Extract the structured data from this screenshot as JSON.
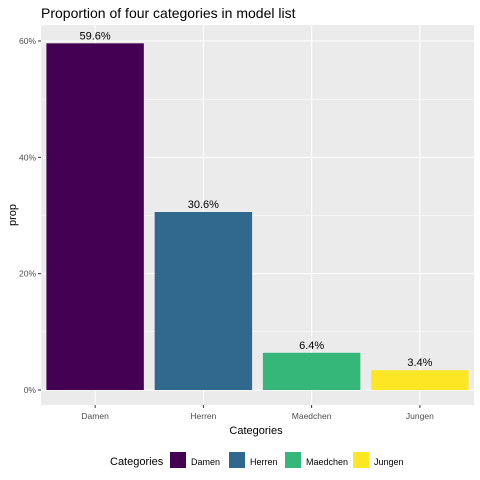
{
  "chart_data": {
    "type": "bar",
    "title": "Proportion of four categories in model list",
    "xlabel": "Categories",
    "ylabel": "prop",
    "categories": [
      "Damen",
      "Herren",
      "Maedchen",
      "Jungen"
    ],
    "values": [
      0.596,
      0.306,
      0.064,
      0.034
    ],
    "labels": [
      "59.6%",
      "30.6%",
      "6.4%",
      "3.4%"
    ],
    "colors": [
      "#440154",
      "#31688e",
      "#35b779",
      "#fde725"
    ],
    "ylim": [
      0,
      0.6
    ],
    "yticks": [
      0,
      0.2,
      0.4,
      0.6
    ],
    "ytick_labels": [
      "0%",
      "20%",
      "40%",
      "60%"
    ],
    "grid": true,
    "panel_background": "#ebebeb",
    "legend": {
      "title": "Categories",
      "position": "bottom",
      "entries": [
        "Damen",
        "Herren",
        "Maedchen",
        "Jungen"
      ]
    }
  }
}
